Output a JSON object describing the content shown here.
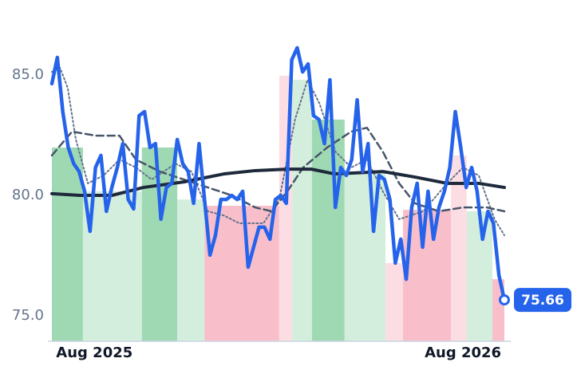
{
  "chart_data": {
    "type": "line",
    "xlim": [
      0,
      83
    ],
    "xticks": [
      {
        "value": 7.8,
        "label": "Aug 2025"
      },
      {
        "value": 75.4,
        "label": "Aug 2026"
      }
    ],
    "ylim": [
      73.94,
      86.99
    ],
    "yticks": [
      {
        "value": 75,
        "label": "75.0"
      },
      {
        "value": 80,
        "label": "80.0"
      },
      {
        "value": 85,
        "label": "85.0"
      }
    ],
    "grid": false,
    "bands": [
      {
        "start": 0,
        "end": 5.7,
        "value": 81.99,
        "color": "#9fd9b4"
      },
      {
        "start": 5.7,
        "end": 16.5,
        "value": 80.17,
        "color": "#d3eedd"
      },
      {
        "start": 16.5,
        "end": 23.0,
        "value": 81.99,
        "color": "#9fd9b4"
      },
      {
        "start": 23.0,
        "end": 28.0,
        "value": 79.83,
        "color": "#d3eedd"
      },
      {
        "start": 28.0,
        "end": 41.7,
        "value": 79.57,
        "color": "#f8bfca"
      },
      {
        "start": 41.7,
        "end": 44.1,
        "value": 84.97,
        "color": "#fcdde3"
      },
      {
        "start": 44.1,
        "end": 47.7,
        "value": 84.8,
        "color": "#d3eedd"
      },
      {
        "start": 47.7,
        "end": 53.7,
        "value": 83.15,
        "color": "#9fd9b4"
      },
      {
        "start": 53.7,
        "end": 61.2,
        "value": 80.99,
        "color": "#d3eedd"
      },
      {
        "start": 61.2,
        "end": 64.4,
        "value": 77.19,
        "color": "#fcdde3"
      },
      {
        "start": 64.4,
        "end": 73.2,
        "value": 79.4,
        "color": "#f8bfca"
      },
      {
        "start": 73.2,
        "end": 76.1,
        "value": 81.66,
        "color": "#fcdde3"
      },
      {
        "start": 76.1,
        "end": 80.8,
        "value": 79.34,
        "color": "#d3eedd"
      },
      {
        "start": 80.8,
        "end": 83,
        "value": 76.52,
        "color": "#f8bfca"
      }
    ],
    "series": [
      {
        "color": "#64748b",
        "dash": "2 3",
        "width": 2,
        "x": [
          0,
          1.5,
          2.9,
          4.4,
          6.6,
          9.5,
          12.4,
          15.4,
          18.3,
          22.7,
          25.6,
          28.6,
          31.5,
          34.4,
          38.8,
          41.7,
          44.6,
          46.9,
          49.1,
          52.0,
          54.9,
          57.8,
          60.7,
          63.7,
          68.1,
          72.5,
          75.4,
          78.3,
          81.2,
          83
        ],
        "values": [
          85.13,
          85.3,
          84.47,
          82.32,
          80.5,
          80.83,
          81.49,
          81.16,
          80.66,
          81.32,
          80.99,
          79.34,
          79.17,
          78.84,
          78.84,
          79.83,
          83.15,
          84.8,
          83.81,
          81.82,
          81.16,
          81.49,
          80.17,
          79.01,
          79.34,
          80.5,
          81.16,
          80.83,
          79.01,
          78.34
        ]
      },
      {
        "color": "#475569",
        "dash": "9 5",
        "width": 2.5,
        "x": [
          0,
          3.7,
          8.1,
          12.4,
          15.4,
          19.8,
          24.2,
          28.6,
          33.0,
          37.3,
          40.3,
          43.2,
          46.1,
          50.5,
          54.9,
          57.8,
          60.7,
          63.7,
          66.6,
          71.0,
          75.4,
          79.8,
          83
        ],
        "values": [
          81.66,
          82.65,
          82.48,
          82.48,
          81.49,
          80.99,
          80.66,
          80.33,
          80.0,
          79.5,
          79.34,
          80.17,
          81.16,
          81.99,
          82.65,
          82.81,
          81.82,
          80.5,
          79.67,
          79.34,
          79.5,
          79.5,
          79.34
        ]
      },
      {
        "color": "#1e293b",
        "width": 4,
        "x": [
          0,
          5.1,
          11,
          16.8,
          24.2,
          31.5,
          37.3,
          43.2,
          47.6,
          51.9,
          60.7,
          66.6,
          72.5,
          78.3,
          83
        ],
        "values": [
          80.07,
          80.0,
          80.0,
          80.33,
          80.56,
          80.89,
          81.03,
          81.09,
          81.09,
          80.89,
          80.99,
          80.76,
          80.5,
          80.5,
          80.33
        ]
      },
      {
        "color": "#2563eb",
        "width": 4.5,
        "values": [
          84.64,
          85.73,
          83.48,
          81.99,
          81.32,
          80.99,
          80.17,
          78.51,
          81.16,
          81.66,
          79.34,
          80.33,
          81.16,
          82.15,
          79.83,
          79.44,
          83.31,
          83.48,
          81.99,
          82.15,
          79.01,
          80.33,
          80.5,
          82.32,
          81.32,
          80.99,
          79.67,
          82.15,
          79.83,
          77.52,
          78.34,
          79.83,
          79.83,
          80.0,
          79.83,
          80.17,
          77.02,
          77.85,
          78.68,
          78.68,
          78.18,
          79.83,
          80.0,
          79.67,
          85.63,
          86.13,
          85.13,
          85.46,
          83.31,
          83.15,
          82.15,
          84.8,
          79.5,
          81.16,
          80.83,
          81.49,
          83.97,
          80.99,
          82.15,
          78.51,
          80.83,
          80.66,
          79.83,
          77.19,
          78.18,
          76.52,
          79.5,
          80.5,
          77.85,
          80.17,
          78.18,
          79.5,
          80.17,
          81.16,
          83.48,
          81.99,
          80.33,
          81.16,
          80.17,
          78.18,
          79.34,
          78.84,
          76.69,
          75.66
        ]
      }
    ]
  }
}
